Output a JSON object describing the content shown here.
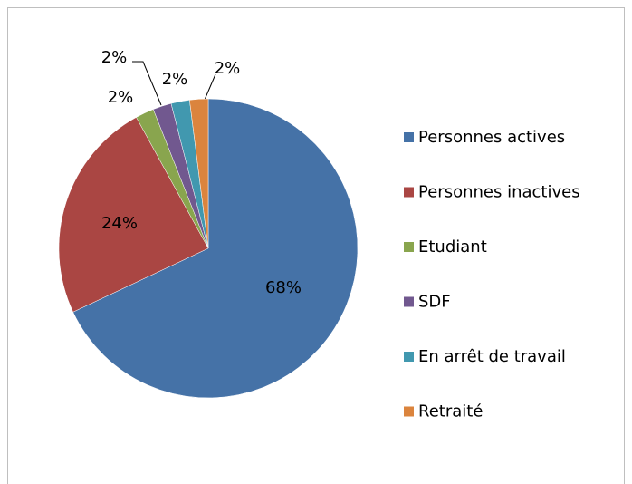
{
  "chart_data": {
    "type": "pie",
    "categories": [
      "Personnes actives",
      "Personnes inactives",
      "Etudiant",
      "SDF",
      "En arrêt de travail",
      "Retraité"
    ],
    "values": [
      68,
      24,
      2,
      2,
      2,
      2
    ],
    "value_labels": [
      "68%",
      "24%",
      "2%",
      "2%",
      "2%",
      "2%"
    ],
    "colors": [
      "#4572a7",
      "#aa4643",
      "#89a54e",
      "#71588f",
      "#4198af",
      "#db843d"
    ],
    "legend": "right"
  }
}
